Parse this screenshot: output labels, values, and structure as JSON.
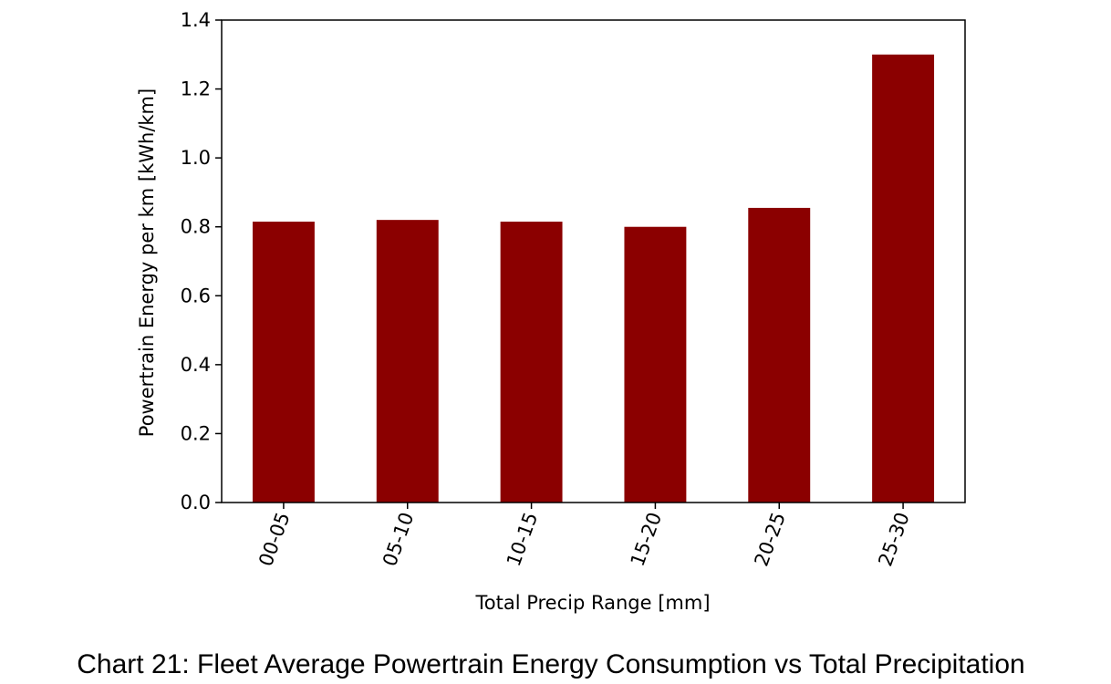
{
  "chart_data": {
    "type": "bar",
    "categories": [
      "00-05",
      "05-10",
      "10-15",
      "15-20",
      "20-25",
      "25-30"
    ],
    "values": [
      0.815,
      0.82,
      0.815,
      0.8,
      0.855,
      1.3
    ],
    "color": "#8b0000",
    "xlabel": "Total Precip Range [mm]",
    "ylabel": "Powertrain Energy per km [kWh/km]",
    "ylim": [
      0,
      1.4
    ],
    "yticks": [
      {
        "value": 0,
        "label": "0.0"
      },
      0.2,
      0.4,
      0.6,
      0.8,
      {
        "value": 1,
        "label": "1.0"
      },
      1.2,
      1.4
    ],
    "caption": "Chart 21: Fleet Average Powertrain Energy Consumption vs Total Precipitation"
  }
}
